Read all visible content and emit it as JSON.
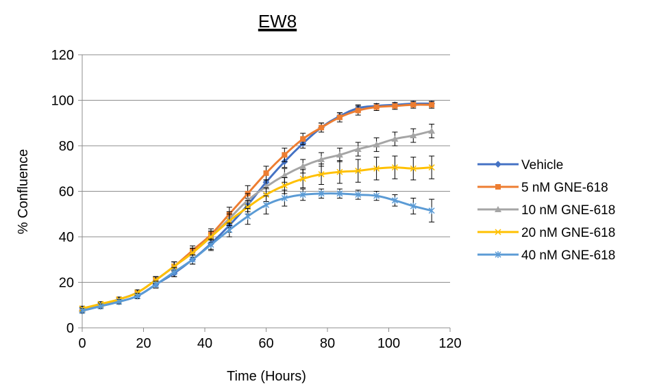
{
  "chart_data": {
    "type": "line",
    "title": "EW8",
    "xlabel": "Time (Hours)",
    "ylabel": "% Confluence",
    "xlim": [
      0,
      120
    ],
    "ylim": [
      0,
      120
    ],
    "xticks": [
      0,
      20,
      40,
      60,
      80,
      100,
      120
    ],
    "yticks": [
      0,
      20,
      40,
      60,
      80,
      100,
      120
    ],
    "grid": "horizontal",
    "legend_position": "right",
    "x": [
      0,
      6,
      12,
      18,
      24,
      30,
      36,
      42,
      48,
      54,
      60,
      66,
      72,
      78,
      84,
      90,
      96,
      102,
      108,
      114
    ],
    "series": [
      {
        "name": "Vehicle",
        "color": "#4472C4",
        "marker": "diamond",
        "values": [
          7.5,
          9.5,
          11.5,
          14,
          19,
          24,
          30,
          37,
          45,
          54,
          64,
          73,
          81,
          88,
          93,
          96.5,
          97.5,
          98,
          98.5,
          98.5
        ],
        "errors": [
          1,
          1,
          1,
          1.2,
          1.5,
          1.5,
          2,
          2.5,
          3,
          3,
          3,
          2.5,
          2,
          2,
          1.5,
          1.5,
          1,
          1,
          1,
          1
        ]
      },
      {
        "name": "5 nM GNE-618",
        "color": "#ED7D31",
        "marker": "square",
        "values": [
          8,
          10,
          12.5,
          15.5,
          21,
          27,
          34,
          41,
          50,
          59,
          68,
          76,
          83,
          88,
          92.5,
          95.5,
          97,
          97.5,
          98,
          98
        ],
        "errors": [
          1,
          1,
          1,
          1.2,
          1.5,
          2,
          2,
          2.5,
          3,
          3.5,
          3,
          3,
          2.5,
          2,
          2,
          2,
          1.5,
          1.5,
          1.5,
          1.5
        ]
      },
      {
        "name": "10 nM GNE-618",
        "color": "#A5A5A5",
        "marker": "triangle",
        "values": [
          8,
          10,
          12.5,
          15.5,
          21,
          27,
          33,
          40,
          48,
          56,
          62,
          67,
          71,
          74,
          76,
          78.5,
          80.5,
          83,
          84.5,
          86.5
        ],
        "errors": [
          1,
          1,
          1,
          1.2,
          1.5,
          2,
          2,
          2.5,
          3,
          3,
          3,
          3,
          3,
          3,
          3,
          3,
          3,
          3,
          3,
          3
        ]
      },
      {
        "name": "20 nM GNE-618",
        "color": "#FFC000",
        "marker": "x",
        "values": [
          8.5,
          10.5,
          12.5,
          15.5,
          21,
          27,
          33,
          40,
          47,
          53,
          58.5,
          62.5,
          65.5,
          67.5,
          68.5,
          69,
          70,
          70.5,
          70,
          70.5
        ],
        "errors": [
          1,
          1,
          1,
          1.2,
          1.5,
          2,
          2,
          2.5,
          3,
          3,
          3,
          3.5,
          4,
          4.5,
          5,
          5,
          5,
          5,
          5,
          5
        ]
      },
      {
        "name": "40 nM GNE-618",
        "color": "#5B9BD5",
        "marker": "asterisk",
        "values": [
          7.5,
          9.5,
          11.5,
          14,
          19,
          24.5,
          30,
          36.5,
          43,
          49,
          54,
          57,
          58.5,
          59,
          59,
          58.5,
          58,
          56,
          53.5,
          51.5
        ],
        "errors": [
          1,
          1,
          1,
          1.2,
          1.5,
          2,
          2,
          2.5,
          3,
          3.5,
          4,
          3.5,
          2.5,
          2,
          2,
          2,
          2,
          2.5,
          3.5,
          5
        ]
      }
    ]
  }
}
